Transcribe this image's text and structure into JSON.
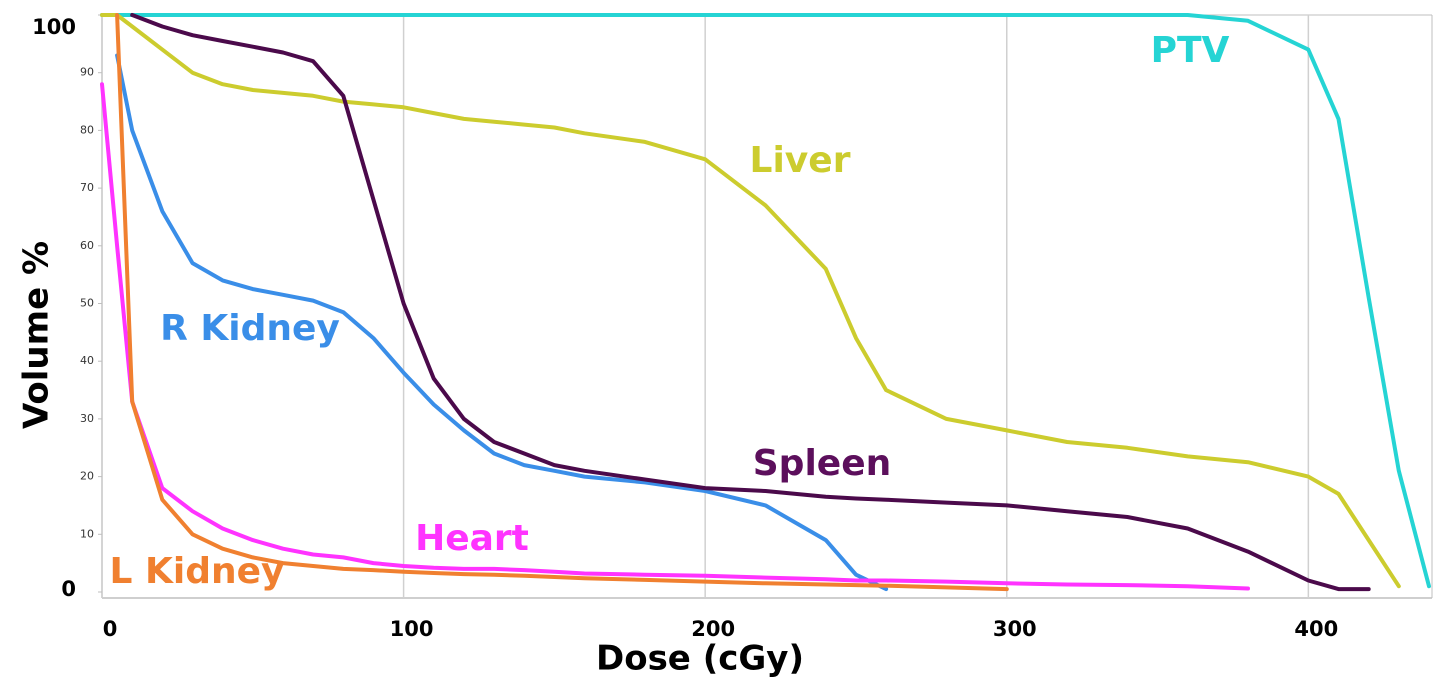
{
  "chart_data": {
    "type": "line",
    "xlabel": "Dose (cGy)",
    "ylabel": "Volume %",
    "xlim": [
      0,
      441
    ],
    "ylim": [
      0,
      100
    ],
    "xticks": [
      0,
      100,
      200,
      300,
      400
    ],
    "yticks": [
      0,
      10,
      20,
      30,
      40,
      50,
      60,
      70,
      80,
      90,
      100
    ],
    "grid": "x",
    "x": [
      0,
      5,
      10,
      20,
      30,
      40,
      50,
      60,
      70,
      80,
      90,
      100,
      110,
      120,
      130,
      140,
      150,
      160,
      180,
      200,
      220,
      240,
      250,
      260,
      280,
      300,
      320,
      340,
      360,
      380,
      400,
      410,
      420,
      430,
      440
    ],
    "series": [
      {
        "name": "PTV",
        "color": "#25d4d4",
        "values": [
          100,
          100,
          100,
          100,
          100,
          100,
          100,
          100,
          100,
          100,
          100,
          100,
          100,
          100,
          100,
          100,
          100,
          100,
          100,
          100,
          100,
          100,
          100,
          100,
          100,
          100,
          100,
          100,
          100,
          99,
          94,
          82,
          51,
          21,
          1
        ]
      },
      {
        "name": "Liver",
        "color": "#cccc2e",
        "values": [
          100,
          100,
          98,
          94,
          90,
          88,
          87,
          86.5,
          86,
          85,
          84.5,
          84,
          83,
          82,
          81.5,
          81,
          80.5,
          79.5,
          78,
          75,
          67,
          56,
          44,
          35,
          30,
          28,
          26,
          25,
          23.5,
          22.5,
          20,
          17,
          9,
          1,
          null
        ]
      },
      {
        "name": "R Kidney",
        "color": "#3a8ee8",
        "values": [
          null,
          93,
          80,
          66,
          57,
          54,
          52.5,
          51.5,
          50.5,
          48.5,
          44,
          38,
          32.5,
          28,
          24,
          22,
          21,
          20,
          19,
          17.5,
          15,
          9,
          3,
          0.5,
          null,
          null,
          null,
          null,
          null,
          null,
          null,
          null,
          null,
          null,
          null
        ]
      },
      {
        "name": "Spleen",
        "color": "#4b0a4b",
        "values": [
          null,
          null,
          100,
          98,
          96.5,
          95.5,
          94.5,
          93.5,
          92,
          86,
          68,
          50,
          37,
          30,
          26,
          24,
          22,
          21,
          19.5,
          18,
          17.5,
          16.5,
          16.2,
          16,
          15.5,
          15,
          14,
          13,
          11,
          7,
          2,
          0.5,
          0.5,
          null,
          null
        ]
      },
      {
        "name": "Heart",
        "color": "#ff33ff",
        "values": [
          88,
          60,
          33,
          18,
          14,
          11,
          9,
          7.5,
          6.5,
          6,
          5,
          4.5,
          4.2,
          4,
          4,
          3.8,
          3.5,
          3.2,
          3,
          2.8,
          2.5,
          2.2,
          2,
          2,
          1.8,
          1.5,
          1.3,
          1.2,
          1,
          0.6,
          null,
          null,
          null,
          null,
          null
        ]
      },
      {
        "name": "L Kidney",
        "color": "#f08030",
        "values": [
          null,
          100,
          33,
          16,
          10,
          7.5,
          6,
          5,
          4.5,
          4,
          3.8,
          3.5,
          3.3,
          3.1,
          3,
          2.8,
          2.6,
          2.4,
          2.1,
          1.8,
          1.5,
          1.3,
          1.2,
          1.1,
          0.8,
          0.5,
          null,
          null,
          null,
          null,
          null,
          null,
          null,
          null,
          null
        ]
      }
    ]
  }
}
